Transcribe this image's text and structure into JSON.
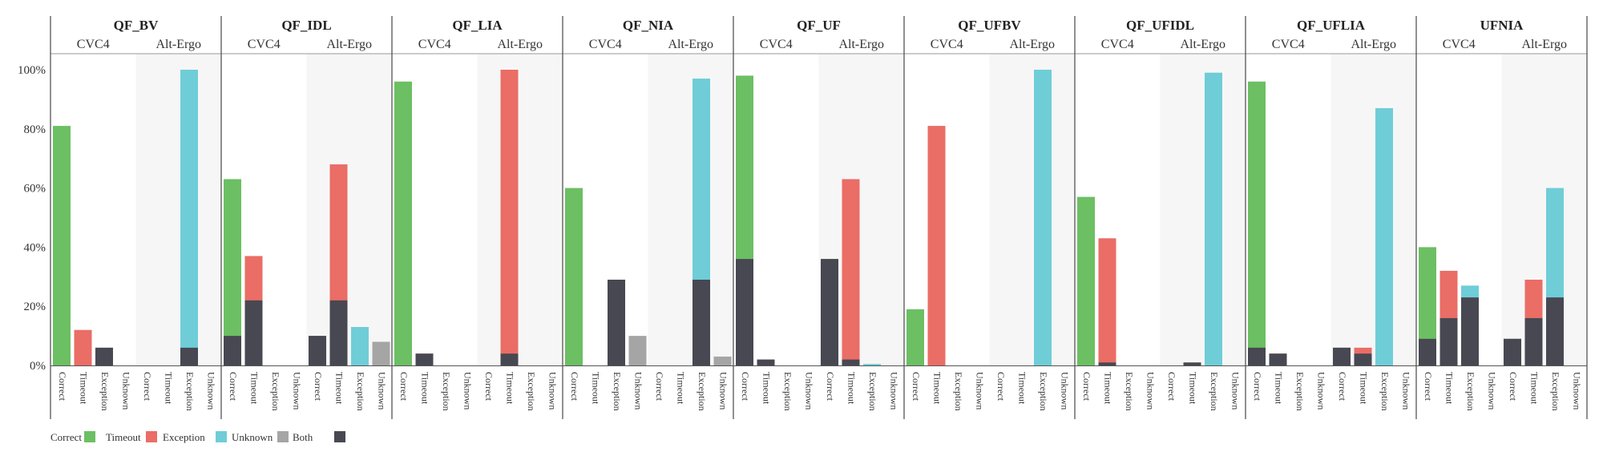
{
  "chart_data": {
    "type": "bar",
    "stacked": true,
    "colors": {
      "green": "#6cbf63",
      "red": "#ea6d66",
      "cyan": "#6fcdd7",
      "gray": "#a5a5a5",
      "dark": "#474852",
      "shade": "#f6f6f6"
    },
    "y_ticks": [
      "0%",
      "20%",
      "40%",
      "60%",
      "80%",
      "100%"
    ],
    "ylim": [
      0,
      100
    ],
    "categories": [
      "Correct",
      "Timeout",
      "Exception",
      "Unknown"
    ],
    "solvers": [
      "CVC4",
      "Alt-Ergo"
    ],
    "legend": [
      {
        "label": "Correct",
        "color": "green"
      },
      {
        "label": "Timeout",
        "color": "red"
      },
      {
        "label": "Exception",
        "color": "cyan"
      },
      {
        "label": "Unknown",
        "color": "gray"
      },
      {
        "label": "Both",
        "color": "dark"
      }
    ],
    "panels": [
      {
        "title": "QF_BV",
        "values": [
          [
            [
              81,
              0,
              "green"
            ],
            [
              12,
              0,
              "red"
            ],
            [
              6,
              6,
              "cyan"
            ],
            [
              0,
              0,
              "gray"
            ]
          ],
          [
            [
              0,
              0,
              "green"
            ],
            [
              0,
              0,
              "red"
            ],
            [
              100,
              6,
              "cyan"
            ],
            [
              0,
              0,
              "gray"
            ]
          ]
        ]
      },
      {
        "title": "QF_IDL",
        "values": [
          [
            [
              63,
              10,
              "green"
            ],
            [
              37,
              22,
              "red"
            ],
            [
              0,
              0,
              "cyan"
            ],
            [
              0,
              0,
              "gray"
            ]
          ],
          [
            [
              10,
              10,
              "green"
            ],
            [
              68,
              22,
              "red"
            ],
            [
              13,
              0,
              "cyan"
            ],
            [
              8,
              0,
              "gray"
            ]
          ]
        ]
      },
      {
        "title": "QF_LIA",
        "values": [
          [
            [
              96,
              0,
              "green"
            ],
            [
              4,
              4,
              "red"
            ],
            [
              0,
              0,
              "cyan"
            ],
            [
              0,
              0,
              "gray"
            ]
          ],
          [
            [
              0,
              0,
              "green"
            ],
            [
              100,
              4,
              "red"
            ],
            [
              0,
              0,
              "cyan"
            ],
            [
              0,
              0,
              "gray"
            ]
          ]
        ]
      },
      {
        "title": "QF_NIA",
        "values": [
          [
            [
              60,
              0,
              "green"
            ],
            [
              0,
              0,
              "red"
            ],
            [
              29,
              29,
              "cyan"
            ],
            [
              10,
              0,
              "gray"
            ]
          ],
          [
            [
              0,
              0,
              "green"
            ],
            [
              0,
              0,
              "red"
            ],
            [
              97,
              29,
              "cyan"
            ],
            [
              3,
              0,
              "gray"
            ]
          ]
        ]
      },
      {
        "title": "QF_UF",
        "values": [
          [
            [
              98,
              36,
              "green"
            ],
            [
              2,
              2,
              "red"
            ],
            [
              0,
              0,
              "cyan"
            ],
            [
              0,
              0,
              "gray"
            ]
          ],
          [
            [
              36,
              36,
              "green"
            ],
            [
              63,
              2,
              "red"
            ],
            [
              0.5,
              0,
              "cyan"
            ],
            [
              0,
              0,
              "gray"
            ]
          ]
        ]
      },
      {
        "title": "QF_UFBV",
        "values": [
          [
            [
              19,
              0,
              "green"
            ],
            [
              81,
              0,
              "red"
            ],
            [
              0,
              0,
              "cyan"
            ],
            [
              0,
              0,
              "gray"
            ]
          ],
          [
            [
              0,
              0,
              "green"
            ],
            [
              0,
              0,
              "red"
            ],
            [
              100,
              0,
              "cyan"
            ],
            [
              0,
              0,
              "gray"
            ]
          ]
        ]
      },
      {
        "title": "QF_UFIDL",
        "values": [
          [
            [
              57,
              0,
              "green"
            ],
            [
              43,
              1,
              "red"
            ],
            [
              0,
              0,
              "cyan"
            ],
            [
              0,
              0,
              "gray"
            ]
          ],
          [
            [
              0,
              0,
              "green"
            ],
            [
              1,
              1,
              "red"
            ],
            [
              99,
              0,
              "cyan"
            ],
            [
              0,
              0,
              "gray"
            ]
          ]
        ]
      },
      {
        "title": "QF_UFLIA",
        "values": [
          [
            [
              96,
              6,
              "green"
            ],
            [
              4,
              4,
              "red"
            ],
            [
              0,
              0,
              "cyan"
            ],
            [
              0,
              0,
              "gray"
            ]
          ],
          [
            [
              6,
              6,
              "green"
            ],
            [
              6,
              4,
              "red"
            ],
            [
              87,
              0,
              "cyan"
            ],
            [
              0,
              0,
              "gray"
            ]
          ]
        ]
      },
      {
        "title": "UFNIA",
        "values": [
          [
            [
              40,
              9,
              "green"
            ],
            [
              32,
              16,
              "red"
            ],
            [
              27,
              23,
              "cyan"
            ],
            [
              0,
              0,
              "gray"
            ]
          ],
          [
            [
              9,
              9,
              "green"
            ],
            [
              29,
              16,
              "red"
            ],
            [
              60,
              23,
              "cyan"
            ],
            [
              0,
              0,
              "gray"
            ]
          ]
        ]
      }
    ]
  }
}
